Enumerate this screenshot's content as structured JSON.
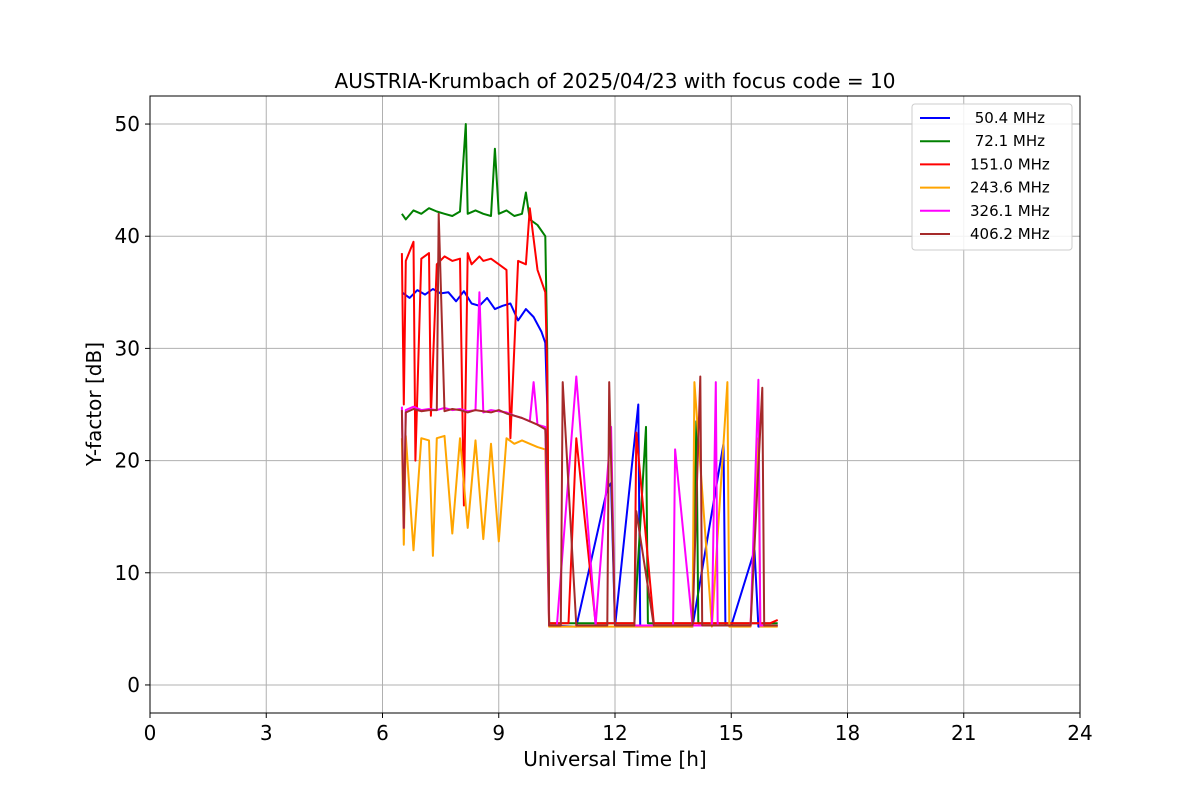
{
  "chart_data": {
    "type": "line",
    "title": "AUSTRIA-Krumbach of 2025/04/23 with focus code = 10",
    "xlabel": "Universal Time [h]",
    "ylabel": "Y-factor [dB]",
    "xlim": [
      0,
      24
    ],
    "ylim": [
      -2.5,
      52.5
    ],
    "xticks": [
      0,
      3,
      6,
      9,
      12,
      15,
      18,
      21,
      24
    ],
    "yticks": [
      0,
      10,
      20,
      30,
      40,
      50
    ],
    "grid": true,
    "legend_position": "top-right",
    "series": [
      {
        "name": " 50.4 MHz",
        "color": "#0000ff",
        "x": [
          6.5,
          6.7,
          6.9,
          7.1,
          7.3,
          7.5,
          7.7,
          7.9,
          8.1,
          8.3,
          8.5,
          8.7,
          8.9,
          9.1,
          9.3,
          9.5,
          9.7,
          9.9,
          10.1,
          10.2,
          10.25,
          10.3,
          11.0,
          11.8,
          11.9,
          12.0,
          12.6,
          12.65,
          13.0,
          14.0,
          14.8,
          14.85,
          15.0,
          15.6,
          15.7,
          16.2
        ],
        "y": [
          35.0,
          34.5,
          35.2,
          34.8,
          35.3,
          34.9,
          35.0,
          34.2,
          35.1,
          34.0,
          33.8,
          34.5,
          33.5,
          33.8,
          34.0,
          32.5,
          33.5,
          32.8,
          31.5,
          30.5,
          25.0,
          5.3,
          5.2,
          17.5,
          18.0,
          5.2,
          25.0,
          5.3,
          5.3,
          5.2,
          21.5,
          5.3,
          5.3,
          12.0,
          5.2,
          5.3
        ]
      },
      {
        "name": " 72.1 MHz",
        "color": "#008000",
        "x": [
          6.5,
          6.6,
          6.8,
          7.0,
          7.2,
          7.4,
          7.6,
          7.8,
          8.0,
          8.15,
          8.2,
          8.4,
          8.6,
          8.8,
          8.9,
          9.0,
          9.2,
          9.4,
          9.6,
          9.7,
          9.8,
          10.0,
          10.2,
          10.25,
          10.3,
          10.6,
          11.0,
          11.5,
          12.0,
          12.5,
          12.8,
          12.85,
          13.0,
          13.5,
          14.0,
          14.1,
          14.15,
          14.5,
          15.0,
          15.5,
          16.0,
          16.2
        ],
        "y": [
          42.0,
          41.5,
          42.3,
          42.0,
          42.5,
          42.2,
          42.0,
          41.8,
          42.2,
          50.0,
          42.0,
          42.3,
          42.0,
          41.8,
          47.8,
          42.0,
          42.3,
          41.8,
          42.0,
          43.9,
          41.5,
          41.0,
          40.0,
          30.0,
          5.5,
          5.5,
          5.5,
          5.5,
          5.5,
          5.5,
          23.0,
          5.5,
          5.5,
          5.5,
          5.5,
          23.5,
          5.5,
          5.5,
          5.5,
          5.5,
          5.5,
          5.5
        ]
      },
      {
        "name": "151.0 MHz",
        "color": "#ff0000",
        "x": [
          6.5,
          6.55,
          6.6,
          6.8,
          6.85,
          7.0,
          7.2,
          7.25,
          7.4,
          7.6,
          7.8,
          8.0,
          8.1,
          8.2,
          8.3,
          8.5,
          8.6,
          8.8,
          9.0,
          9.2,
          9.3,
          9.5,
          9.7,
          9.8,
          10.0,
          10.2,
          10.25,
          10.3,
          10.8,
          11.0,
          11.5,
          11.8,
          12.0,
          12.5,
          12.55,
          13.0,
          13.5,
          14.0,
          14.5,
          15.0,
          15.5,
          16.0,
          16.2
        ],
        "y": [
          38.5,
          25.0,
          37.8,
          39.5,
          20.0,
          38.0,
          38.5,
          24.0,
          37.5,
          38.2,
          37.8,
          38.0,
          16.0,
          38.5,
          37.5,
          38.2,
          37.8,
          38.0,
          37.5,
          37.0,
          22.0,
          37.8,
          37.5,
          42.5,
          37.0,
          35.0,
          28.0,
          5.5,
          5.5,
          22.0,
          5.5,
          5.5,
          5.5,
          5.5,
          22.5,
          5.5,
          5.5,
          5.5,
          5.5,
          5.5,
          5.5,
          5.5,
          5.8
        ]
      },
      {
        "name": "243.6 MHz",
        "color": "#ffa500",
        "x": [
          6.5,
          6.55,
          6.6,
          6.8,
          7.0,
          7.2,
          7.3,
          7.4,
          7.6,
          7.8,
          8.0,
          8.2,
          8.4,
          8.6,
          8.8,
          9.0,
          9.2,
          9.4,
          9.6,
          9.8,
          10.0,
          10.2,
          10.3,
          10.5,
          11.0,
          11.5,
          12.0,
          12.5,
          13.0,
          13.5,
          14.0,
          14.05,
          14.5,
          14.9,
          14.95,
          15.0,
          15.5,
          15.7,
          15.75,
          16.0,
          16.2
        ],
        "y": [
          22.0,
          12.5,
          22.2,
          12.0,
          22.0,
          21.8,
          11.5,
          22.0,
          22.2,
          13.5,
          22.0,
          14.0,
          21.8,
          13.0,
          21.5,
          12.8,
          22.0,
          21.5,
          21.8,
          21.5,
          21.2,
          21.0,
          5.2,
          5.2,
          5.2,
          5.2,
          5.2,
          5.2,
          5.2,
          5.2,
          5.2,
          27.0,
          5.2,
          27.0,
          5.2,
          5.2,
          5.2,
          22.0,
          5.2,
          5.2,
          5.2
        ]
      },
      {
        "name": "326.1 MHz",
        "color": "#ff00ff",
        "x": [
          6.5,
          6.55,
          6.6,
          6.8,
          7.0,
          7.2,
          7.4,
          7.6,
          7.8,
          8.0,
          8.2,
          8.4,
          8.5,
          8.6,
          8.8,
          9.0,
          9.2,
          9.4,
          9.6,
          9.8,
          9.9,
          10.0,
          10.2,
          10.3,
          10.5,
          11.0,
          11.5,
          11.9,
          12.0,
          12.5,
          13.0,
          13.5,
          13.55,
          14.0,
          14.5,
          14.6,
          14.65,
          15.0,
          15.5,
          15.7,
          15.75,
          16.0,
          16.2
        ],
        "y": [
          24.8,
          14.0,
          24.5,
          24.8,
          24.5,
          24.6,
          24.5,
          24.7,
          24.5,
          24.6,
          24.4,
          24.5,
          35.0,
          24.3,
          24.5,
          24.4,
          24.3,
          24.0,
          23.8,
          23.5,
          27.0,
          23.2,
          23.0,
          5.3,
          5.3,
          27.5,
          5.3,
          23.0,
          5.3,
          5.3,
          5.3,
          5.3,
          21.0,
          5.3,
          5.3,
          27.0,
          5.3,
          5.3,
          5.3,
          27.2,
          5.3,
          5.3,
          5.3
        ]
      },
      {
        "name": "406.2 MHz",
        "color": "#a52a2a",
        "x": [
          6.5,
          6.55,
          6.6,
          6.8,
          7.0,
          7.2,
          7.4,
          7.45,
          7.6,
          7.8,
          8.0,
          8.2,
          8.4,
          8.6,
          8.8,
          9.0,
          9.2,
          9.4,
          9.6,
          9.8,
          10.0,
          10.2,
          10.25,
          10.3,
          10.6,
          10.65,
          11.0,
          11.5,
          11.8,
          11.85,
          12.0,
          12.5,
          12.55,
          13.0,
          13.5,
          14.0,
          14.2,
          14.25,
          14.5,
          15.0,
          15.5,
          15.8,
          15.85,
          16.0,
          16.2
        ],
        "y": [
          24.5,
          14.0,
          24.3,
          24.6,
          24.4,
          24.5,
          24.5,
          42.0,
          24.4,
          24.6,
          24.5,
          24.3,
          24.5,
          24.4,
          24.3,
          24.5,
          24.2,
          24.0,
          23.8,
          23.5,
          23.2,
          22.8,
          18.0,
          5.3,
          5.3,
          27.0,
          5.3,
          5.3,
          5.3,
          27.0,
          5.3,
          5.3,
          15.5,
          5.3,
          5.3,
          5.3,
          27.5,
          5.3,
          5.3,
          5.3,
          5.3,
          26.5,
          5.3,
          5.3,
          5.3
        ]
      }
    ]
  }
}
